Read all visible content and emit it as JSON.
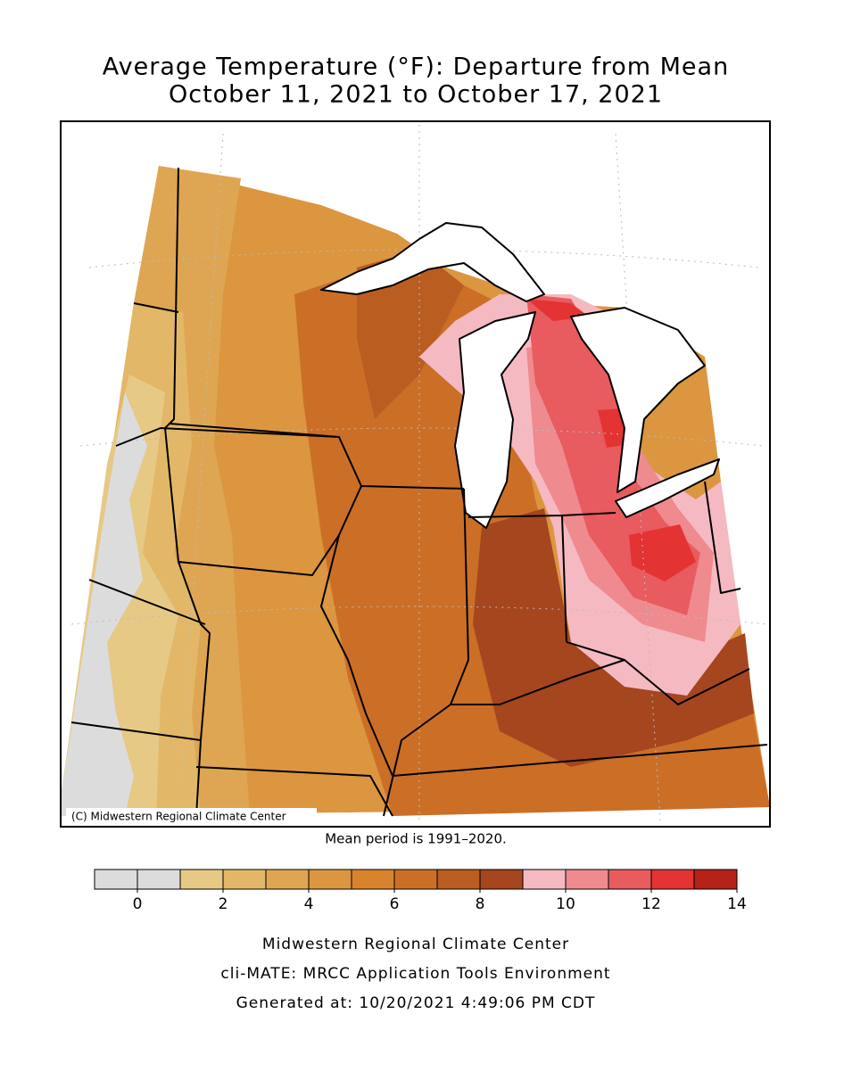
{
  "title": [
    "Average Temperature (°F): Departure from Mean",
    "October 11, 2021 to October 17, 2021"
  ],
  "copyright": "(C) Midwestern Regional Climate Center",
  "note": "Mean period is 1991–2020.",
  "legend": {
    "bounds": [
      -1,
      0,
      1,
      2,
      3,
      4,
      5,
      6,
      7,
      8,
      9,
      10,
      11,
      12,
      13,
      14
    ],
    "colors": [
      "#dcdcdc",
      "#dcdcdc",
      "#e6c985",
      "#e2b868",
      "#dea653",
      "#db963f",
      "#d7842d",
      "#cb6f27",
      "#ba5d21",
      "#a5461e",
      "#f5b9c1",
      "#ef8a8f",
      "#e85b5f",
      "#e43333",
      "#b52218"
    ],
    "ticks": [
      0,
      2,
      4,
      6,
      8,
      10,
      12,
      14
    ]
  },
  "footer": [
    "Midwestern Regional Climate Center",
    "cli-MATE: MRCC Application Tools Environment",
    "Generated at: 10/20/2021 4:49:06 PM CDT"
  ]
}
